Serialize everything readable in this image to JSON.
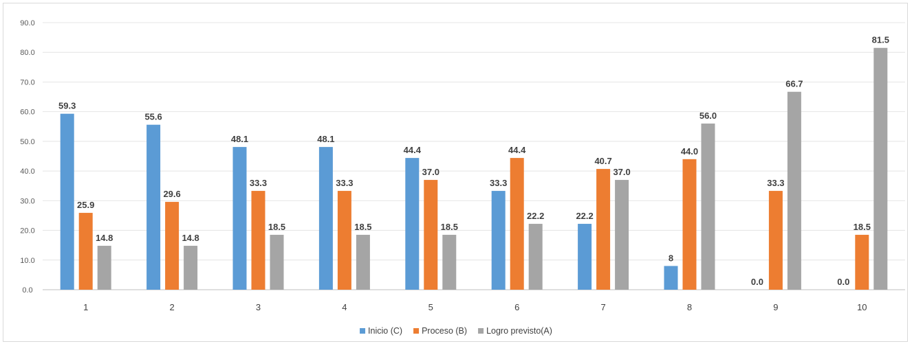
{
  "chart_data": {
    "type": "bar",
    "title": "",
    "xlabel": "",
    "ylabel": "",
    "ylim": [
      0,
      90
    ],
    "yticks": [
      "0.0",
      "10.0",
      "20.0",
      "30.0",
      "40.0",
      "50.0",
      "60.0",
      "70.0",
      "80.0",
      "90.0"
    ],
    "grid": true,
    "legend_position": "bottom",
    "categories": [
      "1",
      "2",
      "3",
      "4",
      "5",
      "6",
      "7",
      "8",
      "9",
      "10"
    ],
    "series": [
      {
        "name": "Inicio (C)",
        "color": "#5b9bd5",
        "values": [
          59.3,
          55.6,
          48.1,
          48.1,
          44.4,
          33.3,
          22.2,
          8,
          0.0,
          0.0
        ],
        "labels": [
          "59.3",
          "55.6",
          "48.1",
          "48.1",
          "44.4",
          "33.3",
          "22.2",
          "8",
          "0.0",
          "0.0"
        ]
      },
      {
        "name": "Proceso (B)",
        "color": "#ed7d31",
        "values": [
          25.9,
          29.6,
          33.3,
          33.3,
          37.0,
          44.4,
          40.7,
          44.0,
          33.3,
          18.5
        ],
        "labels": [
          "25.9",
          "29.6",
          "33.3",
          "33.3",
          "37.0",
          "44.4",
          "40.7",
          "44.0",
          "33.3",
          "18.5"
        ]
      },
      {
        "name": "Logro previsto(A)",
        "color": "#a5a5a5",
        "values": [
          14.8,
          14.8,
          18.5,
          18.5,
          18.5,
          22.2,
          37.0,
          56.0,
          66.7,
          81.5
        ],
        "labels": [
          "14.8",
          "14.8",
          "18.5",
          "18.5",
          "18.5",
          "22.2",
          "37.0",
          "56.0",
          "66.7",
          "81.5"
        ]
      }
    ]
  }
}
